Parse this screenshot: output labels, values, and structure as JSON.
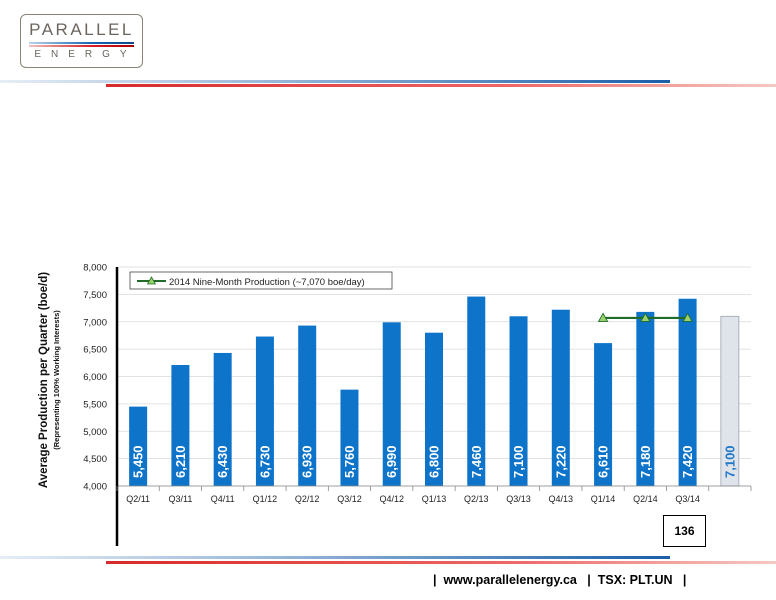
{
  "footer": {
    "website": "www.parallelenergy.ca",
    "ticker": "TSX: PLT.UN"
  },
  "page_number": "136",
  "logo": {
    "top": "PARALLEL",
    "bottom": "ENERGY"
  },
  "colors": {
    "bar": "#0e74c9",
    "forecast_bar": "#dfe3ea",
    "forecast_text": "#1f78c8",
    "line": "#1f6b2a",
    "marker": "#9bd16a",
    "red": "#d72a2a",
    "blue": "#1b5fa8"
  },
  "chart_data": {
    "type": "bar",
    "categories": [
      "Q2/11",
      "Q3/11",
      "Q4/11",
      "Q1/12",
      "Q2/12",
      "Q3/12",
      "Q4/12",
      "Q1/13",
      "Q2/13",
      "Q3/13",
      "Q4/13",
      "Q1/14",
      "Q2/14",
      "Q3/14"
    ],
    "values": [
      5450,
      6210,
      6430,
      6730,
      6930,
      5760,
      6990,
      6800,
      7460,
      7100,
      7220,
      6610,
      7180,
      7420
    ],
    "value_labels": [
      "5,450",
      "6,210",
      "6,430",
      "6,730",
      "6,930",
      "5,760",
      "6,990",
      "6,800",
      "7,460",
      "7,100",
      "7,220",
      "6,610",
      "7,180",
      "7,420"
    ],
    "forecast_bar": {
      "value": 7100,
      "label": "7,100"
    },
    "ylabel": "Average Production per Quarter (boe/d)",
    "ylabel_sub": "(Representing 100% Working Interests)",
    "ylim": [
      4000,
      8000
    ],
    "yticks": [
      4000,
      4500,
      5000,
      5500,
      6000,
      6500,
      7000,
      7500,
      8000
    ],
    "ytick_labels": [
      "4,000",
      "4,500",
      "5,000",
      "5,500",
      "6,000",
      "6,500",
      "7,000",
      "7,500",
      "8,000"
    ],
    "grid": true,
    "legend_position": "top-left",
    "overlay_series": {
      "name": "2014 Nine-Month Production (~7,070 boe/day)",
      "categories": [
        "Q1/14",
        "Q2/14",
        "Q3/14"
      ],
      "values": [
        7070,
        7070,
        7070
      ]
    }
  }
}
